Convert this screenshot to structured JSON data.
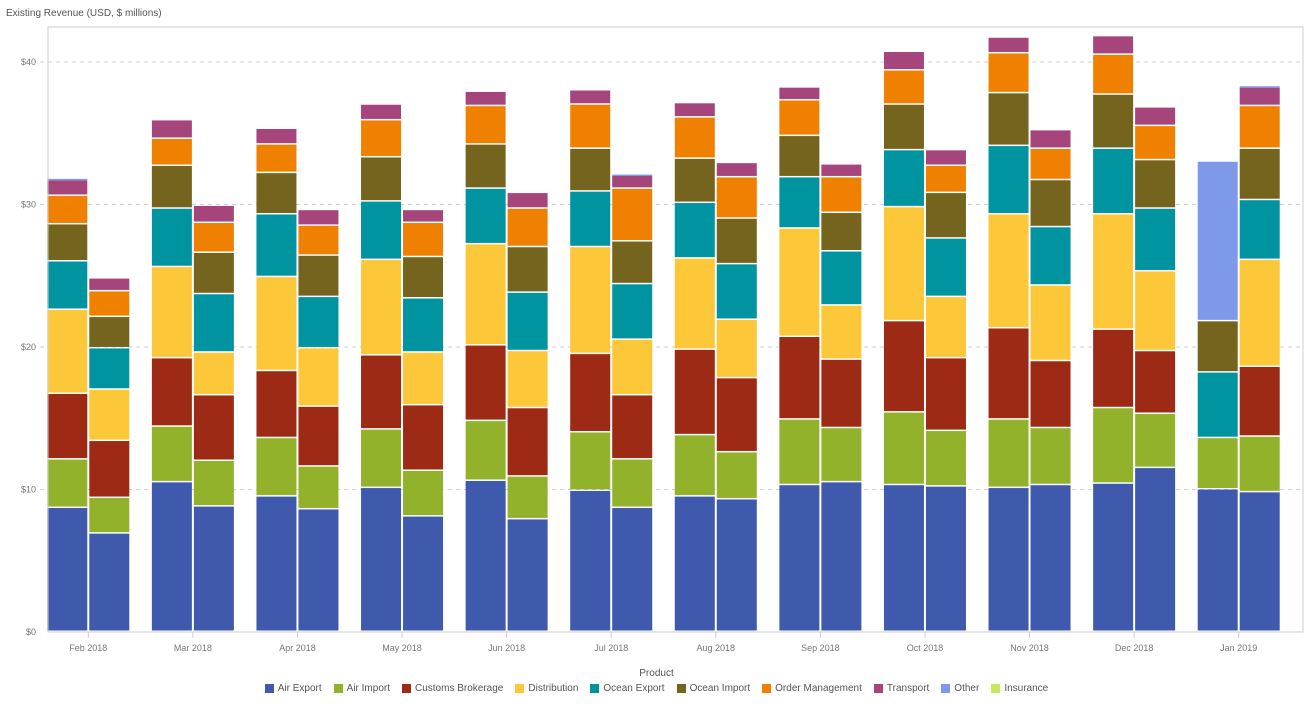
{
  "chart_data": {
    "type": "bar",
    "stacked": true,
    "grouped": true,
    "title": "Existing Revenue (USD, $ millions)",
    "xlabel": "",
    "ylabel": "",
    "ylim": [
      0,
      40
    ],
    "yticks": [
      0,
      10,
      20,
      30,
      40
    ],
    "ytick_labels": [
      "$0",
      "$10",
      "$20",
      "$30",
      "$40"
    ],
    "grid": true,
    "legend_title": "Product",
    "legend_position": "bottom",
    "categories": [
      "Feb 2018",
      "Mar 2018",
      "Apr 2018",
      "May 2018",
      "Jun 2018",
      "Jul 2018",
      "Aug 2018",
      "Sep 2018",
      "Oct 2018",
      "Nov 2018",
      "Dec 2018",
      "Jan 2019"
    ],
    "bars_per_category": 2,
    "series": [
      {
        "name": "Air Export",
        "color": "#3f5aad",
        "values": [
          [
            8.7,
            6.9
          ],
          [
            10.5,
            8.8
          ],
          [
            9.5,
            8.6
          ],
          [
            10.1,
            8.1
          ],
          [
            10.6,
            7.9
          ],
          [
            9.9,
            8.7
          ],
          [
            9.5,
            9.3
          ],
          [
            10.3,
            10.5
          ],
          [
            10.3,
            10.2
          ],
          [
            10.1,
            10.3
          ],
          [
            10.4,
            11.5
          ],
          [
            10.0,
            9.8
          ]
        ]
      },
      {
        "name": "Air Import",
        "color": "#93b22b",
        "values": [
          [
            3.4,
            2.5
          ],
          [
            3.9,
            3.2
          ],
          [
            4.1,
            3.0
          ],
          [
            4.1,
            3.2
          ],
          [
            4.2,
            3.0
          ],
          [
            4.1,
            3.4
          ],
          [
            4.3,
            3.3
          ],
          [
            4.6,
            3.8
          ],
          [
            5.1,
            3.9
          ],
          [
            4.8,
            4.0
          ],
          [
            5.3,
            3.8
          ],
          [
            3.6,
            3.9
          ]
        ]
      },
      {
        "name": "Customs Brokerage",
        "color": "#9c2a14",
        "values": [
          [
            4.6,
            4.0
          ],
          [
            4.8,
            4.6
          ],
          [
            4.7,
            4.2
          ],
          [
            5.2,
            4.6
          ],
          [
            5.3,
            4.8
          ],
          [
            5.5,
            4.5
          ],
          [
            6.0,
            5.2
          ],
          [
            5.8,
            4.8
          ],
          [
            6.4,
            5.1
          ],
          [
            6.4,
            4.7
          ],
          [
            5.5,
            4.4
          ],
          [
            0,
            4.9
          ]
        ]
      },
      {
        "name": "Distribution",
        "color": "#fdc73a",
        "values": [
          [
            5.9,
            3.6
          ],
          [
            6.4,
            3.0
          ],
          [
            6.6,
            4.1
          ],
          [
            6.7,
            3.7
          ],
          [
            7.1,
            4.0
          ],
          [
            7.5,
            3.9
          ],
          [
            6.4,
            4.1
          ],
          [
            7.6,
            3.8
          ],
          [
            8.0,
            4.3
          ],
          [
            8.0,
            5.3
          ],
          [
            8.1,
            5.6
          ],
          [
            0,
            7.5
          ]
        ]
      },
      {
        "name": "Ocean Export",
        "color": "#0093a0",
        "values": [
          [
            3.4,
            2.9
          ],
          [
            4.1,
            4.1
          ],
          [
            4.4,
            3.6
          ],
          [
            4.1,
            3.8
          ],
          [
            3.9,
            4.1
          ],
          [
            3.9,
            3.9
          ],
          [
            3.9,
            3.9
          ],
          [
            3.6,
            3.8
          ],
          [
            4.0,
            4.1
          ],
          [
            4.8,
            4.1
          ],
          [
            4.6,
            4.4
          ],
          [
            4.6,
            4.2
          ]
        ]
      },
      {
        "name": "Ocean Import",
        "color": "#74641d",
        "values": [
          [
            2.6,
            2.2
          ],
          [
            3.0,
            2.9
          ],
          [
            2.9,
            2.9
          ],
          [
            3.1,
            2.9
          ],
          [
            3.1,
            3.2
          ],
          [
            3.0,
            3.0
          ],
          [
            3.1,
            3.2
          ],
          [
            2.9,
            2.7
          ],
          [
            3.2,
            3.2
          ],
          [
            3.7,
            3.3
          ],
          [
            3.8,
            3.4
          ],
          [
            3.6,
            3.6
          ]
        ]
      },
      {
        "name": "Order Management",
        "color": "#f08100",
        "values": [
          [
            2.0,
            1.8
          ],
          [
            1.9,
            2.1
          ],
          [
            2.0,
            2.1
          ],
          [
            2.6,
            2.4
          ],
          [
            2.7,
            2.7
          ],
          [
            3.1,
            3.7
          ],
          [
            2.9,
            2.9
          ],
          [
            2.5,
            2.5
          ],
          [
            2.4,
            1.9
          ],
          [
            2.8,
            2.2
          ],
          [
            2.8,
            2.4
          ],
          [
            0,
            3.0
          ]
        ]
      },
      {
        "name": "Transport",
        "color": "#a6447c",
        "values": [
          [
            1.1,
            0.9
          ],
          [
            1.3,
            1.2
          ],
          [
            1.1,
            1.1
          ],
          [
            1.1,
            0.9
          ],
          [
            1.0,
            1.1
          ],
          [
            1.0,
            0.9
          ],
          [
            1.0,
            1.0
          ],
          [
            0.9,
            0.9
          ],
          [
            1.3,
            1.1
          ],
          [
            1.1,
            1.3
          ],
          [
            1.3,
            1.3
          ],
          [
            0,
            1.3
          ]
        ]
      },
      {
        "name": "Other",
        "color": "#7e98ea",
        "values": [
          [
            0.1,
            0
          ],
          [
            0,
            0
          ],
          [
            0,
            0
          ],
          [
            0,
            0
          ],
          [
            0,
            0
          ],
          [
            0,
            0.1
          ],
          [
            0,
            0
          ],
          [
            0,
            0
          ],
          [
            0,
            0
          ],
          [
            0,
            0
          ],
          [
            0,
            0
          ],
          [
            11.2,
            0.1
          ]
        ]
      },
      {
        "name": "Insurance",
        "color": "#c8e85a",
        "values": [
          [
            0,
            0
          ],
          [
            0,
            0
          ],
          [
            0,
            0
          ],
          [
            0,
            0
          ],
          [
            0,
            0
          ],
          [
            0,
            0
          ],
          [
            0,
            0
          ],
          [
            0,
            0
          ],
          [
            0,
            0
          ],
          [
            0,
            0
          ],
          [
            0,
            0
          ],
          [
            0,
            0
          ]
        ]
      }
    ]
  }
}
